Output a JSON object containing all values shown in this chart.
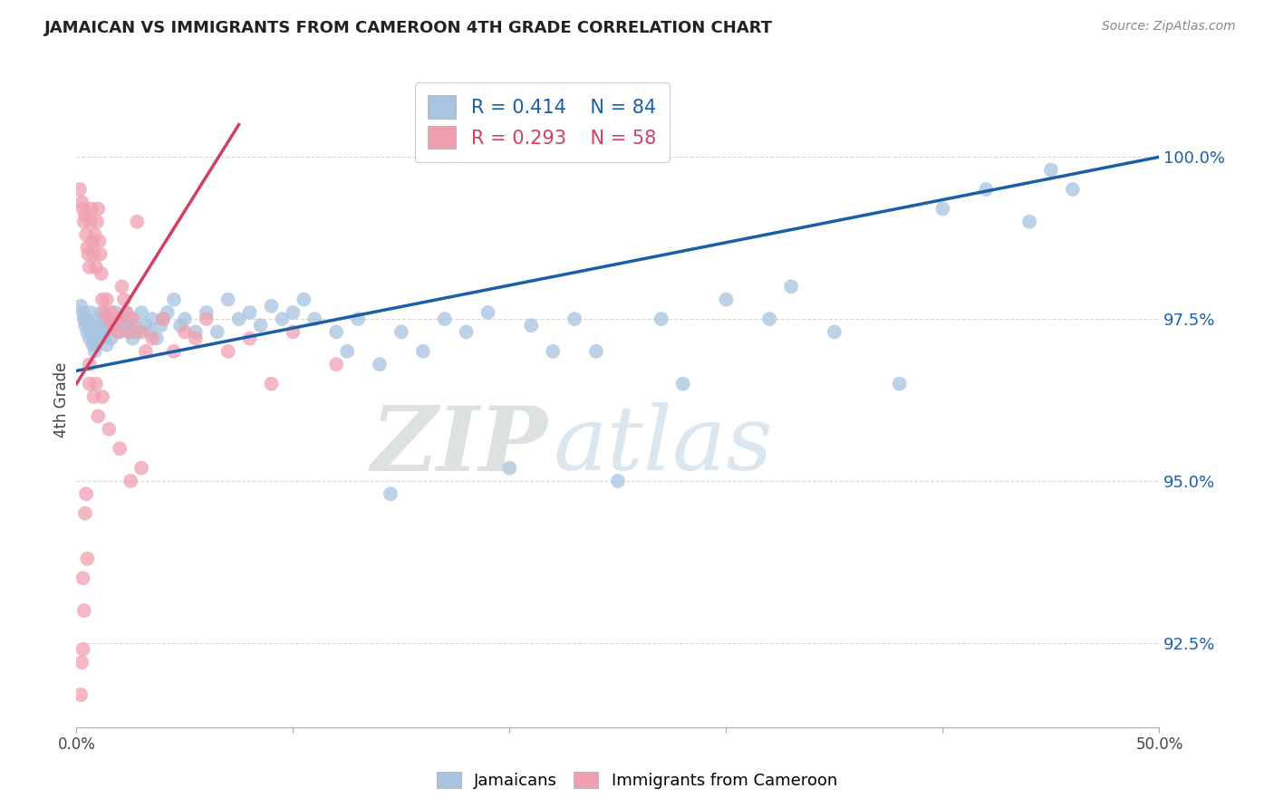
{
  "title": "JAMAICAN VS IMMIGRANTS FROM CAMEROON 4TH GRADE CORRELATION CHART",
  "source": "Source: ZipAtlas.com",
  "ylabel": "4th Grade",
  "ytick_values": [
    92.5,
    95.0,
    97.5,
    100.0
  ],
  "xlim": [
    0.0,
    50.0
  ],
  "ylim": [
    91.2,
    101.3
  ],
  "blue_color": "#a8c4e0",
  "blue_line_color": "#1a5fa8",
  "pink_color": "#f0a0b0",
  "pink_line_color": "#d04060",
  "blue_scatter": [
    [
      0.2,
      97.7
    ],
    [
      0.3,
      97.6
    ],
    [
      0.35,
      97.5
    ],
    [
      0.4,
      97.4
    ],
    [
      0.45,
      97.5
    ],
    [
      0.5,
      97.3
    ],
    [
      0.55,
      97.4
    ],
    [
      0.6,
      97.2
    ],
    [
      0.65,
      97.6
    ],
    [
      0.7,
      97.3
    ],
    [
      0.75,
      97.1
    ],
    [
      0.8,
      97.2
    ],
    [
      0.85,
      97.0
    ],
    [
      0.9,
      97.1
    ],
    [
      0.95,
      97.3
    ],
    [
      1.0,
      97.5
    ],
    [
      1.05,
      97.4
    ],
    [
      1.1,
      97.2
    ],
    [
      1.15,
      97.6
    ],
    [
      1.2,
      97.3
    ],
    [
      1.25,
      97.2
    ],
    [
      1.3,
      97.4
    ],
    [
      1.35,
      97.3
    ],
    [
      1.4,
      97.1
    ],
    [
      1.5,
      97.5
    ],
    [
      1.6,
      97.2
    ],
    [
      1.7,
      97.4
    ],
    [
      1.8,
      97.6
    ],
    [
      1.9,
      97.5
    ],
    [
      2.0,
      97.3
    ],
    [
      2.1,
      97.5
    ],
    [
      2.2,
      97.4
    ],
    [
      2.3,
      97.6
    ],
    [
      2.4,
      97.3
    ],
    [
      2.5,
      97.5
    ],
    [
      2.6,
      97.2
    ],
    [
      2.7,
      97.4
    ],
    [
      2.8,
      97.3
    ],
    [
      3.0,
      97.6
    ],
    [
      3.2,
      97.4
    ],
    [
      3.4,
      97.3
    ],
    [
      3.5,
      97.5
    ],
    [
      3.7,
      97.2
    ],
    [
      3.9,
      97.4
    ],
    [
      4.0,
      97.5
    ],
    [
      4.2,
      97.6
    ],
    [
      4.5,
      97.8
    ],
    [
      4.8,
      97.4
    ],
    [
      5.0,
      97.5
    ],
    [
      5.5,
      97.3
    ],
    [
      6.0,
      97.6
    ],
    [
      6.5,
      97.3
    ],
    [
      7.0,
      97.8
    ],
    [
      7.5,
      97.5
    ],
    [
      8.0,
      97.6
    ],
    [
      8.5,
      97.4
    ],
    [
      9.0,
      97.7
    ],
    [
      9.5,
      97.5
    ],
    [
      10.0,
      97.6
    ],
    [
      10.5,
      97.8
    ],
    [
      11.0,
      97.5
    ],
    [
      12.0,
      97.3
    ],
    [
      12.5,
      97.0
    ],
    [
      13.0,
      97.5
    ],
    [
      14.0,
      96.8
    ],
    [
      14.5,
      94.8
    ],
    [
      15.0,
      97.3
    ],
    [
      16.0,
      97.0
    ],
    [
      17.0,
      97.5
    ],
    [
      18.0,
      97.3
    ],
    [
      19.0,
      97.6
    ],
    [
      20.0,
      95.2
    ],
    [
      21.0,
      97.4
    ],
    [
      22.0,
      97.0
    ],
    [
      23.0,
      97.5
    ],
    [
      24.0,
      97.0
    ],
    [
      25.0,
      95.0
    ],
    [
      27.0,
      97.5
    ],
    [
      28.0,
      96.5
    ],
    [
      30.0,
      97.8
    ],
    [
      32.0,
      97.5
    ],
    [
      33.0,
      98.0
    ],
    [
      35.0,
      97.3
    ],
    [
      38.0,
      96.5
    ],
    [
      40.0,
      99.2
    ],
    [
      42.0,
      99.5
    ],
    [
      44.0,
      99.0
    ],
    [
      45.0,
      99.8
    ],
    [
      46.0,
      99.5
    ]
  ],
  "pink_scatter": [
    [
      0.15,
      99.5
    ],
    [
      0.25,
      99.3
    ],
    [
      0.3,
      99.2
    ],
    [
      0.35,
      99.0
    ],
    [
      0.4,
      99.1
    ],
    [
      0.45,
      98.8
    ],
    [
      0.5,
      98.6
    ],
    [
      0.55,
      98.5
    ],
    [
      0.6,
      98.3
    ],
    [
      0.65,
      99.0
    ],
    [
      0.7,
      99.2
    ],
    [
      0.75,
      98.7
    ],
    [
      0.8,
      98.5
    ],
    [
      0.85,
      98.8
    ],
    [
      0.9,
      98.3
    ],
    [
      0.95,
      99.0
    ],
    [
      1.0,
      99.2
    ],
    [
      1.05,
      98.7
    ],
    [
      1.1,
      98.5
    ],
    [
      1.15,
      98.2
    ],
    [
      1.2,
      97.8
    ],
    [
      1.3,
      97.6
    ],
    [
      1.4,
      97.8
    ],
    [
      1.5,
      97.5
    ],
    [
      1.6,
      97.6
    ],
    [
      1.7,
      97.4
    ],
    [
      1.8,
      97.5
    ],
    [
      1.9,
      97.3
    ],
    [
      2.0,
      97.5
    ],
    [
      2.1,
      98.0
    ],
    [
      2.2,
      97.8
    ],
    [
      2.3,
      97.6
    ],
    [
      2.5,
      97.3
    ],
    [
      2.6,
      97.5
    ],
    [
      2.8,
      99.0
    ],
    [
      3.0,
      97.3
    ],
    [
      3.2,
      97.0
    ],
    [
      3.5,
      97.2
    ],
    [
      4.0,
      97.5
    ],
    [
      4.5,
      97.0
    ],
    [
      5.0,
      97.3
    ],
    [
      5.5,
      97.2
    ],
    [
      6.0,
      97.5
    ],
    [
      7.0,
      97.0
    ],
    [
      8.0,
      97.2
    ],
    [
      9.0,
      96.5
    ],
    [
      10.0,
      97.3
    ],
    [
      12.0,
      96.8
    ],
    [
      0.6,
      96.5
    ],
    [
      0.8,
      96.3
    ],
    [
      1.0,
      96.0
    ],
    [
      1.5,
      95.8
    ],
    [
      2.0,
      95.5
    ],
    [
      2.5,
      95.0
    ],
    [
      3.0,
      95.2
    ],
    [
      0.4,
      94.5
    ],
    [
      0.5,
      93.8
    ],
    [
      0.45,
      94.8
    ],
    [
      0.3,
      93.5
    ],
    [
      0.35,
      93.0
    ],
    [
      0.25,
      92.2
    ],
    [
      0.3,
      92.4
    ],
    [
      0.2,
      91.7
    ],
    [
      0.6,
      96.8
    ],
    [
      0.9,
      96.5
    ],
    [
      1.2,
      96.3
    ]
  ],
  "blue_line_x": [
    0.0,
    50.0
  ],
  "blue_line_y": [
    96.7,
    100.0
  ],
  "pink_line_x": [
    0.0,
    7.5
  ],
  "pink_line_y": [
    96.5,
    100.5
  ],
  "watermark_zip": "ZIP",
  "watermark_atlas": "atlas",
  "background_color": "#ffffff",
  "grid_color": "#d8d8d8"
}
